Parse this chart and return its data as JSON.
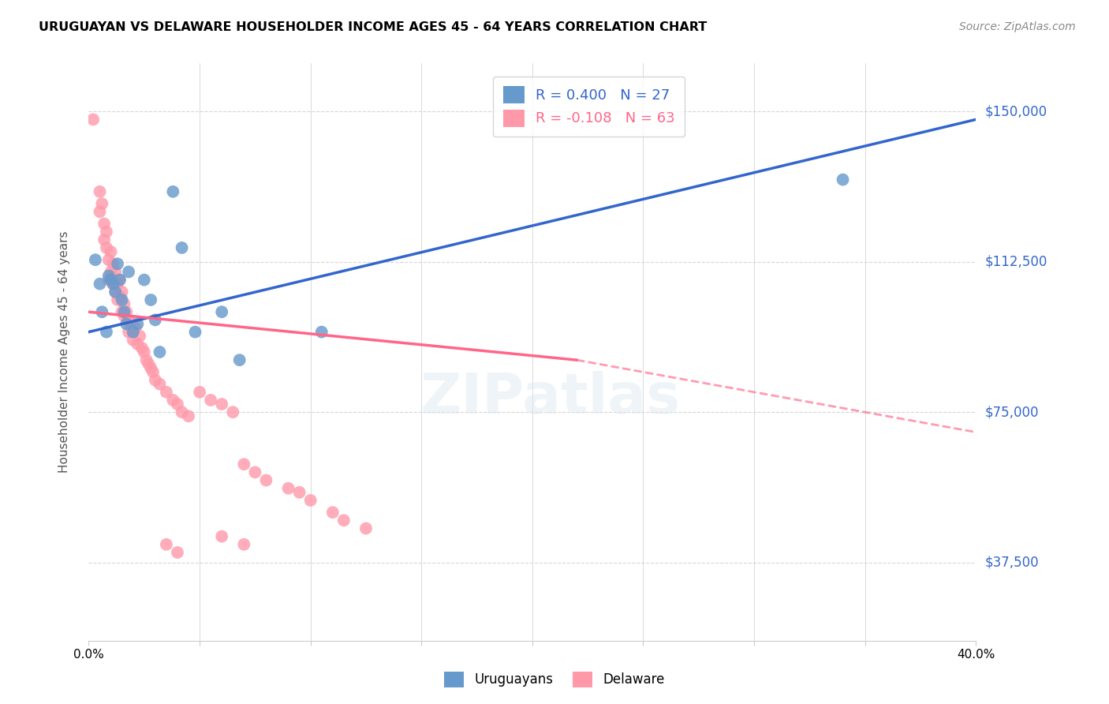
{
  "title": "URUGUAYAN VS DELAWARE HOUSEHOLDER INCOME AGES 45 - 64 YEARS CORRELATION CHART",
  "source": "Source: ZipAtlas.com",
  "ylabel": "Householder Income Ages 45 - 64 years",
  "ytick_labels": [
    "$37,500",
    "$75,000",
    "$112,500",
    "$150,000"
  ],
  "ytick_values": [
    37500,
    75000,
    112500,
    150000
  ],
  "xlim": [
    0.0,
    0.4
  ],
  "ylim": [
    18000,
    162000
  ],
  "uruguayan_R": 0.4,
  "uruguayan_N": 27,
  "delaware_R": -0.108,
  "delaware_N": 63,
  "blue_color": "#6699CC",
  "blue_line_color": "#3366CC",
  "pink_color": "#FF99AA",
  "pink_line_color": "#FF6688",
  "blue_scatter": [
    [
      0.003,
      113000
    ],
    [
      0.005,
      107000
    ],
    [
      0.006,
      100000
    ],
    [
      0.008,
      95000
    ],
    [
      0.009,
      109000
    ],
    [
      0.01,
      108000
    ],
    [
      0.011,
      107000
    ],
    [
      0.012,
      105000
    ],
    [
      0.013,
      112000
    ],
    [
      0.014,
      108000
    ],
    [
      0.015,
      103000
    ],
    [
      0.016,
      100000
    ],
    [
      0.017,
      97000
    ],
    [
      0.018,
      110000
    ],
    [
      0.02,
      95000
    ],
    [
      0.022,
      97000
    ],
    [
      0.025,
      108000
    ],
    [
      0.028,
      103000
    ],
    [
      0.03,
      98000
    ],
    [
      0.032,
      90000
    ],
    [
      0.038,
      130000
    ],
    [
      0.042,
      116000
    ],
    [
      0.048,
      95000
    ],
    [
      0.06,
      100000
    ],
    [
      0.068,
      88000
    ],
    [
      0.105,
      95000
    ],
    [
      0.34,
      133000
    ]
  ],
  "pink_scatter": [
    [
      0.002,
      148000
    ],
    [
      0.005,
      130000
    ],
    [
      0.005,
      125000
    ],
    [
      0.006,
      127000
    ],
    [
      0.007,
      122000
    ],
    [
      0.007,
      118000
    ],
    [
      0.008,
      120000
    ],
    [
      0.008,
      116000
    ],
    [
      0.009,
      113000
    ],
    [
      0.009,
      108000
    ],
    [
      0.01,
      115000
    ],
    [
      0.01,
      110000
    ],
    [
      0.011,
      112000
    ],
    [
      0.011,
      107000
    ],
    [
      0.012,
      110000
    ],
    [
      0.012,
      105000
    ],
    [
      0.013,
      107000
    ],
    [
      0.013,
      103000
    ],
    [
      0.014,
      108000
    ],
    [
      0.014,
      104000
    ],
    [
      0.015,
      105000
    ],
    [
      0.015,
      100000
    ],
    [
      0.016,
      102000
    ],
    [
      0.016,
      99000
    ],
    [
      0.017,
      100000
    ],
    [
      0.018,
      98000
    ],
    [
      0.018,
      95000
    ],
    [
      0.019,
      97000
    ],
    [
      0.02,
      95000
    ],
    [
      0.02,
      93000
    ],
    [
      0.021,
      96000
    ],
    [
      0.022,
      92000
    ],
    [
      0.023,
      94000
    ],
    [
      0.024,
      91000
    ],
    [
      0.025,
      90000
    ],
    [
      0.026,
      88000
    ],
    [
      0.027,
      87000
    ],
    [
      0.028,
      86000
    ],
    [
      0.029,
      85000
    ],
    [
      0.03,
      83000
    ],
    [
      0.032,
      82000
    ],
    [
      0.035,
      80000
    ],
    [
      0.038,
      78000
    ],
    [
      0.04,
      77000
    ],
    [
      0.042,
      75000
    ],
    [
      0.045,
      74000
    ],
    [
      0.05,
      80000
    ],
    [
      0.055,
      78000
    ],
    [
      0.06,
      77000
    ],
    [
      0.065,
      75000
    ],
    [
      0.07,
      62000
    ],
    [
      0.075,
      60000
    ],
    [
      0.08,
      58000
    ],
    [
      0.09,
      56000
    ],
    [
      0.095,
      55000
    ],
    [
      0.1,
      53000
    ],
    [
      0.035,
      42000
    ],
    [
      0.04,
      40000
    ],
    [
      0.06,
      44000
    ],
    [
      0.07,
      42000
    ],
    [
      0.11,
      50000
    ],
    [
      0.115,
      48000
    ],
    [
      0.125,
      46000
    ]
  ],
  "blue_line": [
    [
      0.0,
      95000
    ],
    [
      0.4,
      148000
    ]
  ],
  "pink_line_solid": [
    [
      0.0,
      100000
    ],
    [
      0.22,
      88000
    ]
  ],
  "pink_line_dash": [
    [
      0.22,
      88000
    ],
    [
      0.4,
      70000
    ]
  ]
}
